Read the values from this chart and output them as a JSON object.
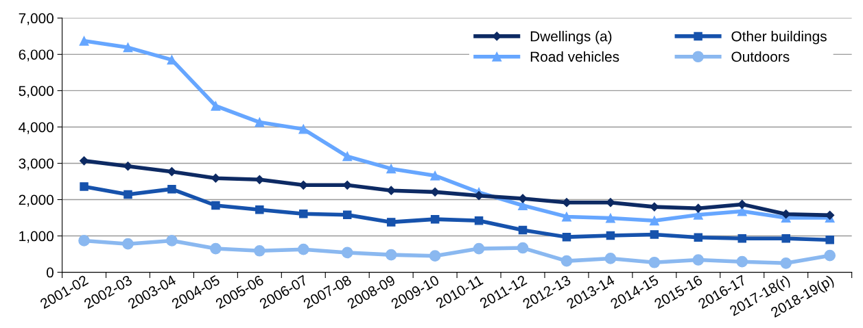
{
  "chart_data": {
    "type": "line",
    "categories": [
      "2001-02",
      "2002-03",
      "2003-04",
      "2004-05",
      "2005-06",
      "2006-07",
      "2007-08",
      "2008-09",
      "2009-10",
      "2010-11",
      "2011-12",
      "2012-13",
      "2013-14",
      "2014-15",
      "2015-16",
      "2016-17",
      "2017-18(r)",
      "2018-19(p)"
    ],
    "series": [
      {
        "name": "Dwellings (a)",
        "color": "#0d2a63",
        "marker": "diamond",
        "values": [
          3070,
          2920,
          2770,
          2590,
          2550,
          2400,
          2400,
          2250,
          2210,
          2110,
          2030,
          1920,
          1920,
          1800,
          1760,
          1870,
          1600,
          1570
        ]
      },
      {
        "name": "Road vehicles",
        "color": "#66a6ff",
        "marker": "triangle",
        "values": [
          6370,
          6190,
          5850,
          4580,
          4130,
          3940,
          3190,
          2850,
          2660,
          2200,
          1840,
          1530,
          1490,
          1420,
          1580,
          1680,
          1500,
          1500
        ]
      },
      {
        "name": "Other buildings",
        "color": "#1652ac",
        "marker": "square",
        "values": [
          2360,
          2140,
          2290,
          1840,
          1720,
          1610,
          1580,
          1380,
          1460,
          1420,
          1160,
          970,
          1010,
          1040,
          960,
          930,
          930,
          890
        ]
      },
      {
        "name": "Outdoors",
        "color": "#8ab8f0",
        "marker": "circle",
        "values": [
          870,
          780,
          870,
          650,
          590,
          630,
          540,
          480,
          450,
          650,
          670,
          310,
          380,
          270,
          340,
          290,
          250,
          460
        ]
      }
    ],
    "ylim": [
      0,
      7000
    ],
    "yticks": [
      {
        "value": 0,
        "label": "0"
      },
      {
        "value": 1000,
        "label": "1,000"
      },
      {
        "value": 2000,
        "label": "2,000"
      },
      {
        "value": 3000,
        "label": "3,000"
      },
      {
        "value": 4000,
        "label": "4,000"
      },
      {
        "value": 5000,
        "label": "5,000"
      },
      {
        "value": 6000,
        "label": "6,000"
      },
      {
        "value": 7000,
        "label": "7,000"
      }
    ],
    "grid": "y",
    "legend": "top right",
    "line_style": "solid"
  }
}
